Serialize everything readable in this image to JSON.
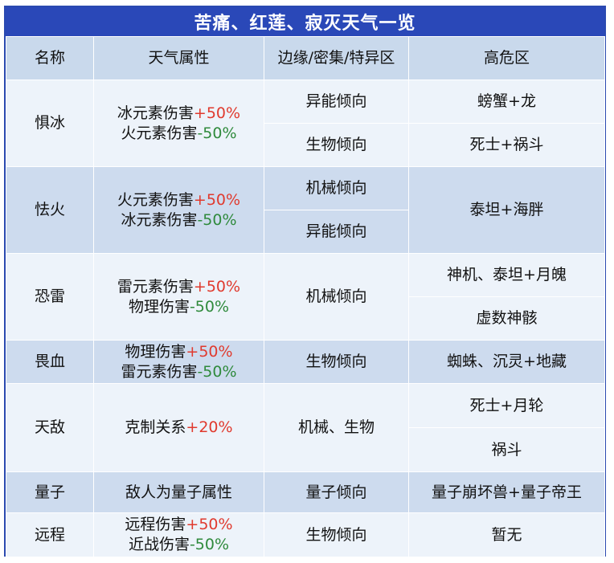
{
  "title": "苦痛、红莲、寂灭天气一览",
  "headers": [
    "名称",
    "天气属性",
    "边缘/密集/特异区",
    "高危区"
  ],
  "rows": {
    "r0": {
      "name": "惧冰",
      "attr1": {
        "text": "冰元素伤害",
        "mod": "+50%"
      },
      "attr2": {
        "text": "火元素伤害",
        "mod": "-50%"
      },
      "edge": [
        "异能倾向",
        "生物倾向"
      ],
      "danger": [
        "螃蟹+龙",
        "死士+祸斗"
      ]
    },
    "r1": {
      "name": "怯火",
      "attr1": {
        "text": "火元素伤害",
        "mod": "+50%"
      },
      "attr2": {
        "text": "冰元素伤害",
        "mod": "-50%"
      },
      "edge": [
        "机械倾向",
        "异能倾向"
      ],
      "danger": [
        "泰坦+海胖"
      ]
    },
    "r2": {
      "name": "恐雷",
      "attr1": {
        "text": "雷元素伤害",
        "mod": "+50%"
      },
      "attr2": {
        "text": "物理伤害",
        "mod": "-50%"
      },
      "edge": [
        "机械倾向"
      ],
      "danger": [
        "神机、泰坦+月魄",
        "虚数神骸"
      ]
    },
    "r3": {
      "name": "畏血",
      "attr1": {
        "text": "物理伤害",
        "mod": "+50%"
      },
      "attr2": {
        "text": "雷元素伤害",
        "mod": "-50%"
      },
      "edge": [
        "生物倾向"
      ],
      "danger": [
        "蜘蛛、沉灵+地藏"
      ]
    },
    "r4": {
      "name": "天敌",
      "attr1": {
        "text": "克制关系",
        "mod": "+20%"
      },
      "edge": [
        "机械、生物"
      ],
      "danger": [
        "死士+月轮",
        "祸斗"
      ]
    },
    "r5": {
      "name": "量子",
      "attr_plain": "敌人为量子属性",
      "edge": [
        "量子倾向"
      ],
      "danger": [
        "量子崩坏兽+量子帝王"
      ]
    },
    "r6": {
      "name": "远程",
      "attr1": {
        "text": "远程伤害",
        "mod": "+50%"
      },
      "attr2": {
        "text": "近战伤害",
        "mod": "-50%"
      },
      "edge": [
        "生物倾向"
      ],
      "danger": [
        "暂无"
      ]
    }
  }
}
